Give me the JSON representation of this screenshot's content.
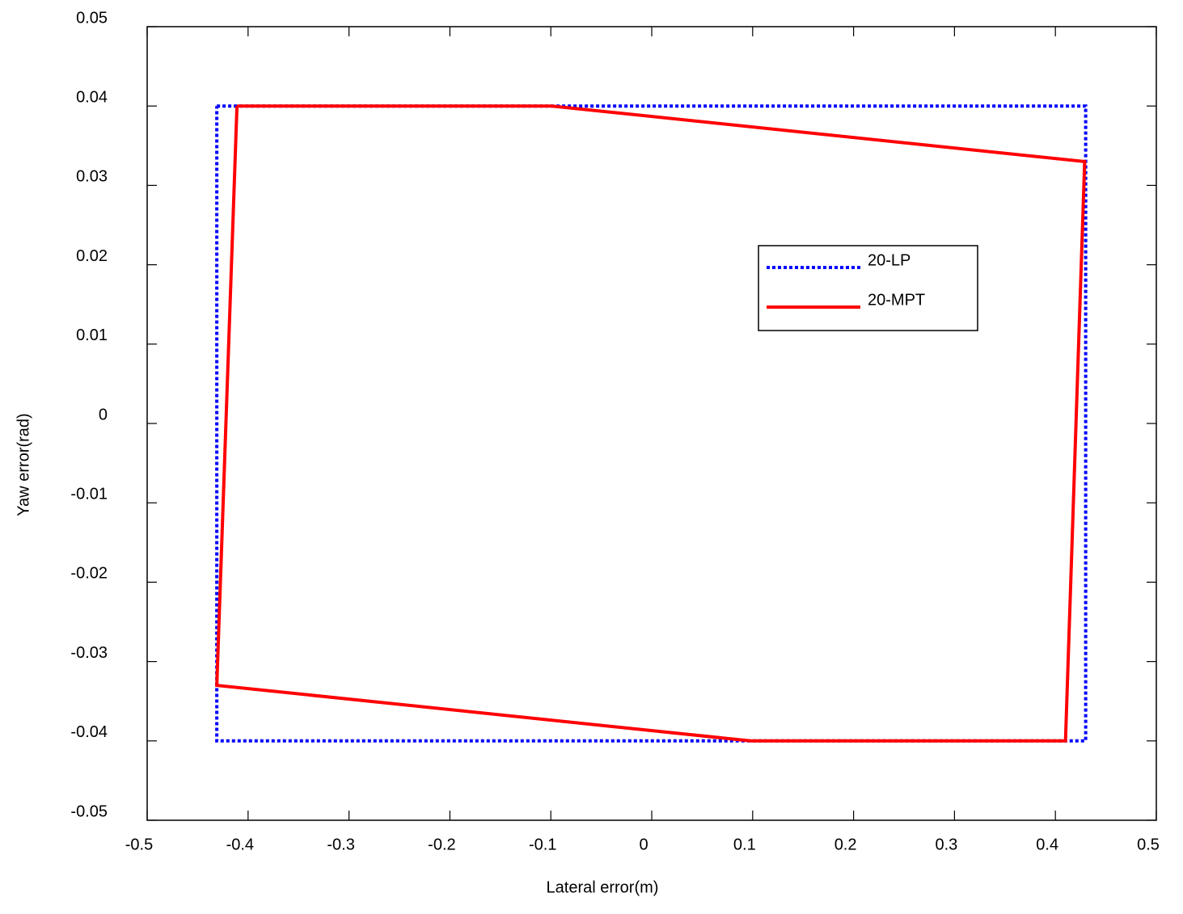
{
  "chart_data": {
    "type": "line",
    "xlabel": "Lateral error(m)",
    "ylabel": "Yaw error(rad)",
    "xlim": [
      -0.5,
      0.5
    ],
    "ylim": [
      -0.05,
      0.05
    ],
    "xticks": [
      -0.5,
      -0.4,
      -0.3,
      -0.2,
      -0.1,
      0,
      0.1,
      0.2,
      0.3,
      0.4,
      0.5
    ],
    "yticks": [
      -0.05,
      -0.04,
      -0.03,
      -0.02,
      -0.01,
      0,
      0.01,
      0.02,
      0.03,
      0.04,
      0.05
    ],
    "legend": "upper right",
    "series": [
      {
        "name": "20-LP",
        "color": "#0000ff",
        "style": "dotted",
        "x": [
          -0.431,
          0.43,
          0.43,
          -0.431,
          -0.431
        ],
        "values": [
          0.04,
          0.04,
          -0.04,
          -0.04,
          0.04
        ]
      },
      {
        "name": "20-MPT",
        "color": "#ff0000",
        "style": "solid",
        "x": [
          -0.411,
          -0.099,
          0.429,
          0.41,
          0.098,
          -0.431,
          -0.411
        ],
        "values": [
          0.04,
          0.04,
          0.033,
          -0.04,
          -0.04,
          -0.033,
          0.04
        ]
      }
    ]
  }
}
